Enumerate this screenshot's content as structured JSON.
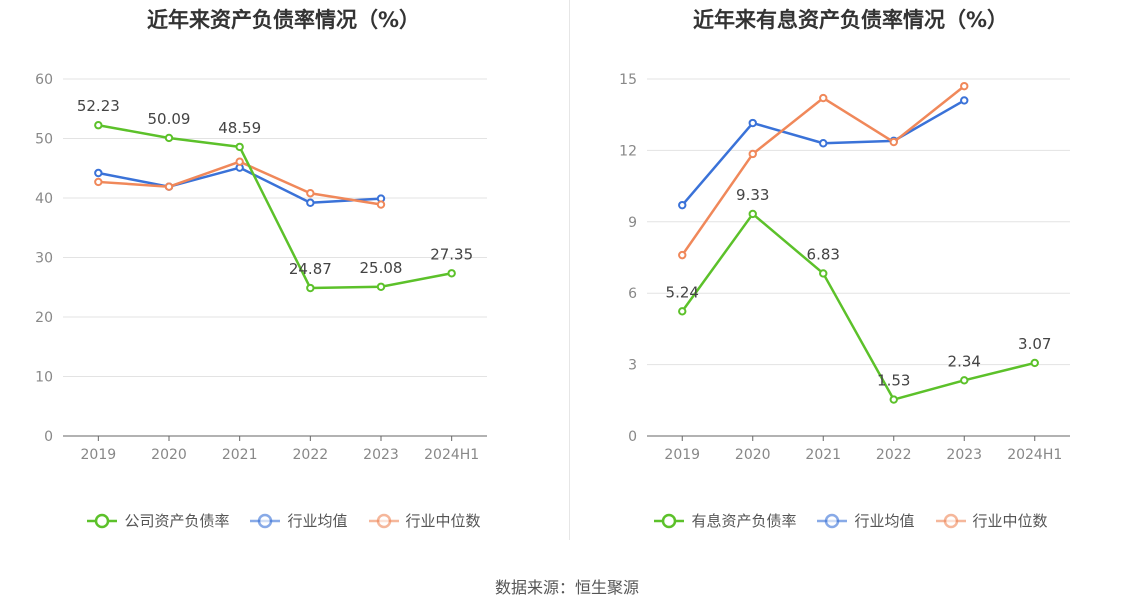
{
  "chart_data": [
    {
      "type": "line",
      "title": "近年来资产负债率情况（%）",
      "categories": [
        "2019",
        "2020",
        "2021",
        "2022",
        "2023",
        "2024H1"
      ],
      "ylim": [
        0,
        60
      ],
      "yticks": [
        0,
        10,
        20,
        30,
        40,
        50,
        60
      ],
      "grid": true,
      "legend_position": "bottom",
      "series": [
        {
          "name": "公司资产负债率",
          "color": "#5cc12a",
          "values": [
            52.23,
            50.09,
            48.59,
            24.87,
            25.08,
            27.35
          ],
          "labels": [
            "52.23",
            "50.09",
            "48.59",
            "24.87",
            "25.08",
            "27.35"
          ]
        },
        {
          "name": "行业均值",
          "color": "#3a72d8",
          "values": [
            44.2,
            41.9,
            45.1,
            39.2,
            39.9,
            null
          ]
        },
        {
          "name": "行业中位数",
          "color": "#f0885a",
          "values": [
            42.7,
            41.9,
            46.1,
            40.8,
            38.9,
            null
          ]
        }
      ]
    },
    {
      "type": "line",
      "title": "近年来有息资产负债率情况（%）",
      "categories": [
        "2019",
        "2020",
        "2021",
        "2022",
        "2023",
        "2024H1"
      ],
      "ylim": [
        0,
        15
      ],
      "yticks": [
        0,
        3,
        6,
        9,
        12,
        15
      ],
      "grid": true,
      "legend_position": "bottom",
      "series": [
        {
          "name": "有息资产负债率",
          "color": "#5cc12a",
          "values": [
            5.24,
            9.33,
            6.83,
            1.53,
            2.34,
            3.07
          ],
          "labels": [
            "5.24",
            "9.33",
            "6.83",
            "1.53",
            "2.34",
            "3.07"
          ]
        },
        {
          "name": "行业均值",
          "color": "#3a72d8",
          "values": [
            9.7,
            13.15,
            12.3,
            12.4,
            14.1,
            null
          ]
        },
        {
          "name": "行业中位数",
          "color": "#f0885a",
          "values": [
            7.6,
            11.85,
            14.2,
            12.35,
            14.7,
            null
          ]
        }
      ]
    }
  ],
  "source": "数据来源：恒生聚源"
}
